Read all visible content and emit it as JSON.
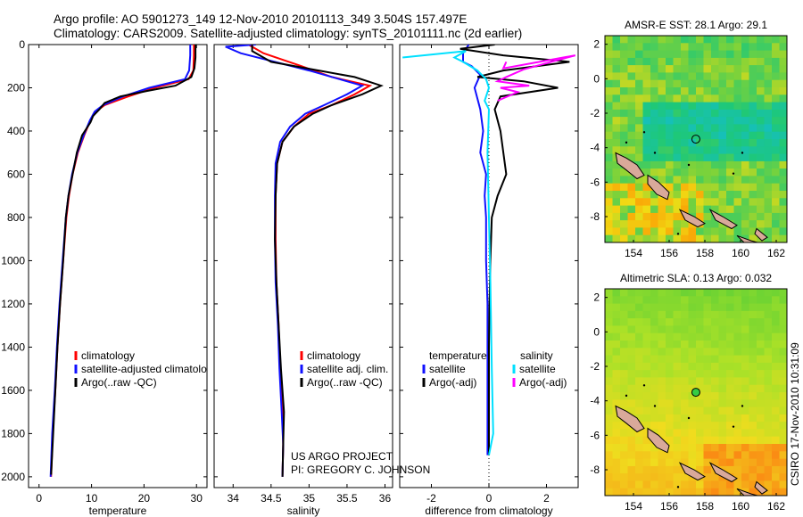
{
  "header": {
    "line1": "Argo profile: AO 5901273_149 12-Nov-2010 20101113_349 3.504S 157.497E",
    "line2": "Climatology: CARS2009. Satellite-adjusted climatology: synTS_20101111.nc (2d earlier)"
  },
  "credits": {
    "project": "US ARGO PROJECT",
    "pi": "PI: GREGORY C. JOHNSON",
    "vertical": "CSIRO 17-Nov-2010 10:31:09"
  },
  "colors": {
    "climatology": "#ff0000",
    "satellite": "#1010ff",
    "argo": "#000000",
    "sal_satellite": "#00e0ff",
    "sal_argo": "#ff00ff"
  },
  "chart_data": [
    {
      "type": "line",
      "name": "temperature-panel",
      "xlabel": "temperature",
      "xlim": [
        -2,
        32
      ],
      "xticks": [
        0,
        10,
        20,
        30
      ],
      "ylim": [
        0,
        2050
      ],
      "yticks": [
        0,
        200,
        400,
        600,
        800,
        1000,
        1200,
        1400,
        1600,
        1800,
        2000
      ],
      "legend": [
        "climatology",
        "satellite-adjusted climatology",
        "Argo(..raw -QC)"
      ],
      "series": [
        {
          "name": "climatology",
          "color": "#ff0000",
          "x": [
            29.5,
            29.5,
            29.4,
            28.5,
            22.0,
            17.0,
            12.5,
            10.8,
            9.8,
            8.6,
            7.4,
            6.4,
            5.7,
            5.2,
            4.6,
            4.0,
            3.5,
            3.1,
            2.6,
            2.3
          ],
          "y": [
            0,
            50,
            120,
            160,
            200,
            240,
            280,
            310,
            350,
            420,
            500,
            600,
            700,
            800,
            1000,
            1200,
            1400,
            1600,
            1800,
            2000
          ]
        },
        {
          "name": "satellite",
          "color": "#1010ff",
          "x": [
            28.8,
            28.8,
            28.6,
            27.8,
            21.0,
            16.0,
            12.2,
            10.6,
            9.7,
            8.5,
            7.3,
            6.3,
            5.6,
            5.1,
            4.5,
            3.9,
            3.4,
            3.0,
            2.5,
            2.2
          ],
          "y": [
            0,
            50,
            120,
            160,
            200,
            240,
            280,
            310,
            350,
            420,
            500,
            600,
            700,
            800,
            1000,
            1200,
            1400,
            1600,
            1800,
            2000
          ]
        },
        {
          "name": "argo",
          "color": "#000000",
          "x": [
            29.8,
            29.8,
            29.6,
            29.0,
            26.0,
            20.5,
            15.5,
            12.5,
            11.5,
            10.3,
            9.8,
            8.2,
            7.2,
            6.4,
            5.6,
            5.1,
            4.6,
            4.0,
            3.5,
            3.1,
            2.7,
            2.3
          ],
          "y": [
            0,
            60,
            110,
            150,
            190,
            215,
            240,
            270,
            300,
            330,
            360,
            420,
            500,
            600,
            700,
            800,
            1000,
            1200,
            1400,
            1600,
            1800,
            1990
          ]
        }
      ]
    },
    {
      "type": "line",
      "name": "salinity-panel",
      "xlabel": "salinity",
      "xlim": [
        33.75,
        36.1
      ],
      "xticks": [
        34,
        34.5,
        35,
        35.5,
        36
      ],
      "xticklabels": [
        "34",
        "34.5",
        "35",
        "35.5",
        "36"
      ],
      "ylim": [
        0,
        2050
      ],
      "legend": [
        "climatology",
        "satellite adj. clim.",
        "Argo(..raw -QC)"
      ],
      "series": [
        {
          "name": "climatology",
          "color": "#ff0000",
          "x": [
            34.2,
            34.4,
            34.9,
            35.3,
            35.8,
            35.6,
            35.3,
            35.0,
            34.8,
            34.65,
            34.58,
            34.56,
            34.56,
            34.57,
            34.6,
            34.62,
            34.65,
            34.66,
            34.65
          ],
          "y": [
            0,
            40,
            100,
            150,
            190,
            230,
            280,
            320,
            380,
            450,
            550,
            700,
            900,
            1100,
            1300,
            1500,
            1700,
            1850,
            2000
          ]
        },
        {
          "name": "satellite",
          "color": "#1010ff",
          "x": [
            34.3,
            33.9,
            34.1,
            35.0,
            35.7,
            35.5,
            35.2,
            34.95,
            34.75,
            34.62,
            34.56,
            34.55,
            34.55,
            34.56,
            34.59,
            34.61,
            34.64,
            34.66,
            34.65
          ],
          "y": [
            0,
            10,
            40,
            120,
            190,
            230,
            280,
            320,
            380,
            450,
            550,
            700,
            900,
            1100,
            1300,
            1500,
            1700,
            1850,
            2000
          ]
        },
        {
          "name": "argo",
          "color": "#000000",
          "x": [
            34.25,
            34.25,
            34.5,
            35.6,
            35.95,
            35.7,
            35.3,
            35.05,
            34.8,
            34.65,
            34.58,
            34.56,
            34.55,
            34.57,
            34.6,
            34.63,
            34.67,
            34.66,
            34.65
          ],
          "y": [
            0,
            30,
            80,
            150,
            190,
            230,
            280,
            320,
            380,
            450,
            550,
            700,
            900,
            1100,
            1300,
            1500,
            1700,
            1850,
            2000
          ]
        }
      ]
    },
    {
      "type": "line",
      "name": "difference-panel",
      "xlabel": "difference from climatology",
      "xlim": [
        -3.1,
        3.1
      ],
      "xticks": [
        -2,
        0,
        2
      ],
      "ylim": [
        0,
        2050
      ],
      "legend": [
        "temperature",
        "satellite",
        "Argo(-adj)",
        "salinity",
        "satellite",
        "Argo(-adj)"
      ],
      "series": [
        {
          "name": "temp-satellite",
          "color": "#1010ff",
          "x": [
            -0.7,
            -0.9,
            -0.9,
            -0.6,
            -0.3,
            -0.5,
            -0.3,
            -0.2,
            -0.3,
            -0.1,
            -0.15,
            -0.1,
            -0.1,
            -0.05,
            -0.05,
            -0.05,
            -0.05,
            -0.05
          ],
          "y": [
            0,
            40,
            80,
            100,
            140,
            200,
            300,
            400,
            500,
            600,
            700,
            800,
            1000,
            1200,
            1400,
            1600,
            1800,
            1900
          ]
        },
        {
          "name": "temp-argo",
          "color": "#000000",
          "x": [
            0.2,
            -1.0,
            0.5,
            2.8,
            0.5,
            -0.4,
            1.2,
            2.4,
            0.4,
            0.2,
            0.4,
            0.6,
            0.3,
            0.1,
            0.05,
            0.02,
            0.0,
            0.0,
            0.0
          ],
          "y": [
            0,
            20,
            50,
            80,
            120,
            150,
            170,
            200,
            240,
            300,
            400,
            600,
            700,
            800,
            1000,
            1200,
            1400,
            1600,
            1900
          ]
        },
        {
          "name": "sal-satellite",
          "color": "#00e0ff",
          "x": [
            -3.0,
            -0.8,
            -1.2,
            -0.9,
            -0.4,
            -0.1,
            0.0,
            -0.15,
            0.0,
            -0.05,
            0.0,
            0.05,
            0.1,
            0.15,
            0.0
          ],
          "y": [
            60,
            30,
            60,
            80,
            120,
            160,
            200,
            260,
            300,
            500,
            800,
            1100,
            1500,
            1800,
            1900
          ]
        },
        {
          "name": "sal-argo",
          "color": "#ff00ff",
          "x": [
            0.6,
            0.5,
            3.0,
            1.2,
            0.6,
            0.3,
            1.4,
            0.4,
            1.0,
            0.3
          ],
          "y": [
            80,
            110,
            50,
            115,
            150,
            170,
            190,
            200,
            220,
            260
          ]
        }
      ]
    },
    {
      "type": "heatmap",
      "name": "sst-map",
      "title": "AMSR-E SST: 28.1  Argo: 29.1",
      "xticks": [
        154,
        156,
        158,
        160,
        162
      ],
      "yticks": [
        2,
        0,
        -2,
        -4,
        -6,
        -8
      ],
      "xlim": [
        152.4,
        162.6
      ],
      "ylim": [
        -9.5,
        2.5
      ],
      "marker": {
        "lon": 157.497,
        "lat": -3.504
      }
    },
    {
      "type": "heatmap",
      "name": "sla-map",
      "title": "Altimetric SLA: 0.13  Argo: 0.032",
      "xticks": [
        154,
        156,
        158,
        160,
        162
      ],
      "yticks": [
        2,
        0,
        -2,
        -4,
        -6,
        -8
      ],
      "xlim": [
        152.4,
        162.6
      ],
      "ylim": [
        -9.5,
        2.5
      ],
      "marker": {
        "lon": 157.497,
        "lat": -3.504
      }
    }
  ]
}
